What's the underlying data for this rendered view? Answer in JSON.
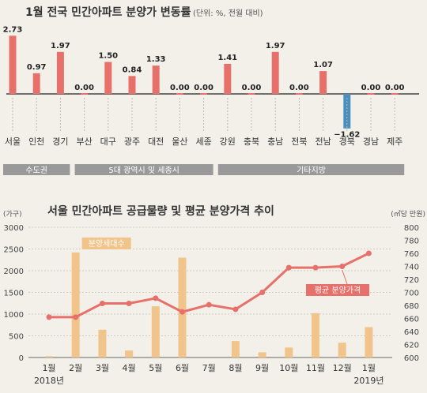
{
  "chart_data": [
    {
      "type": "bar",
      "title": "1월 전국 민간아파트 분양가 변동률",
      "subtitle": "(단위: %, 전월 대비)",
      "categories": [
        "서울",
        "인천",
        "경기",
        "부산",
        "대구",
        "광주",
        "대전",
        "울산",
        "세종",
        "강원",
        "충북",
        "충남",
        "전북",
        "전남",
        "경북",
        "경남",
        "제주"
      ],
      "values": [
        2.73,
        0.97,
        1.97,
        0.0,
        1.5,
        0.84,
        1.33,
        0.0,
        0.0,
        1.41,
        0.0,
        1.97,
        0.0,
        1.07,
        -1.62,
        0.0,
        0.0
      ],
      "value_labels": [
        "2.73",
        "0.97",
        "1.97",
        "0.00",
        "1.50",
        "0.84",
        "1.33",
        "0.00",
        "0.00",
        "1.41",
        "0.00",
        "1.97",
        "0.00",
        "1.07",
        "−1.62",
        "0.00",
        "0.00"
      ],
      "groups": [
        {
          "label": "수도권",
          "count": 3
        },
        {
          "label": "5대 광역시 및 세종시",
          "count": 6
        },
        {
          "label": "기타지방",
          "count": 8
        }
      ],
      "colors": {
        "positive": "#e8706a",
        "negative": "#4a8fbd"
      }
    },
    {
      "type": "bar+line",
      "title": "서울 민간아파트 공급물량 및 평균 분양가격 추이",
      "categories": [
        "1월",
        "2월",
        "3월",
        "4월",
        "5월",
        "6월",
        "7월",
        "8월",
        "9월",
        "10월",
        "11월",
        "12월",
        "1월"
      ],
      "year_labels": {
        "first": "2018년",
        "last": "2019년"
      },
      "left_axis": {
        "unit": "(가구)",
        "min": 0,
        "max": 3000,
        "ticks": [
          0,
          500,
          1000,
          1500,
          2000,
          2500,
          3000
        ]
      },
      "right_axis": {
        "unit": "(㎡당 만원)",
        "min": 600,
        "max": 800,
        "ticks": [
          600,
          620,
          640,
          660,
          680,
          700,
          720,
          740,
          760,
          780,
          800
        ]
      },
      "series": [
        {
          "name": "분양세대수",
          "type": "bar",
          "axis": "left",
          "color": "#f0c48a",
          "values": [
            30,
            2420,
            640,
            160,
            1180,
            2300,
            0,
            380,
            120,
            230,
            1020,
            340,
            700
          ]
        },
        {
          "name": "평균 분양가격",
          "type": "line",
          "axis": "right",
          "color": "#e8706a",
          "values": [
            662,
            662,
            683,
            683,
            691,
            670,
            681,
            674,
            700,
            738,
            738,
            740,
            760
          ]
        }
      ]
    }
  ]
}
